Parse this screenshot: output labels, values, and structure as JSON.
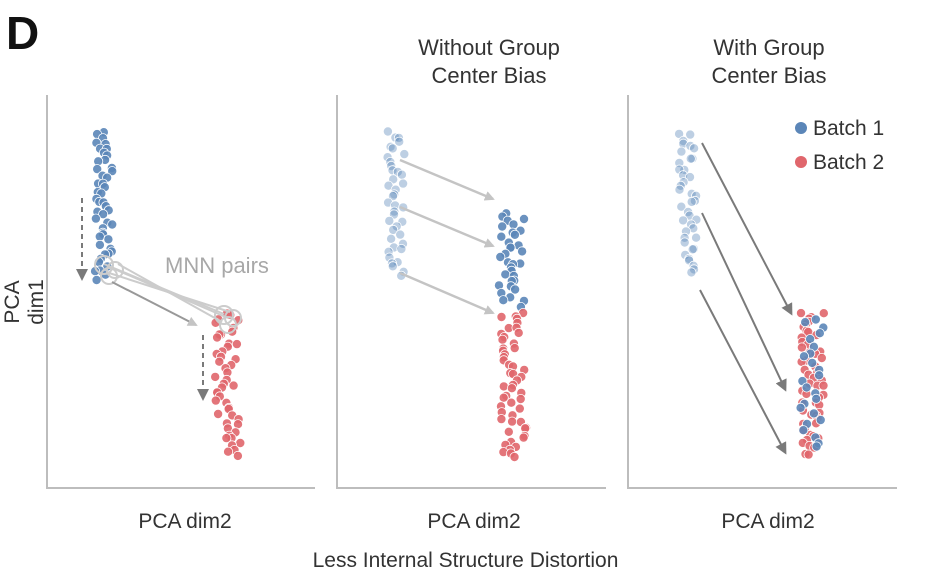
{
  "panel_label": "D",
  "panels": [
    {
      "title_line1": "",
      "title_line2": "",
      "xlabel": "PCA dim2"
    },
    {
      "title_line1": "Without Group",
      "title_line2": "Center Bias",
      "xlabel": "PCA dim2"
    },
    {
      "title_line1": "With Group",
      "title_line2": "Center Bias",
      "xlabel": "PCA dim2"
    }
  ],
  "ylabel": "PCA dim1",
  "annotation": "MNN pairs",
  "legend": {
    "batch1": {
      "label": "Batch 1",
      "color": "#5b86b8"
    },
    "batch2": {
      "label": "Batch 2",
      "color": "#e0666c"
    }
  },
  "footer": "Less Internal Structure Distortion",
  "colors": {
    "axis": "#bdbdbd",
    "arrow_light": "#c4c4c4",
    "arrow_dark": "#7a7a7a"
  }
}
